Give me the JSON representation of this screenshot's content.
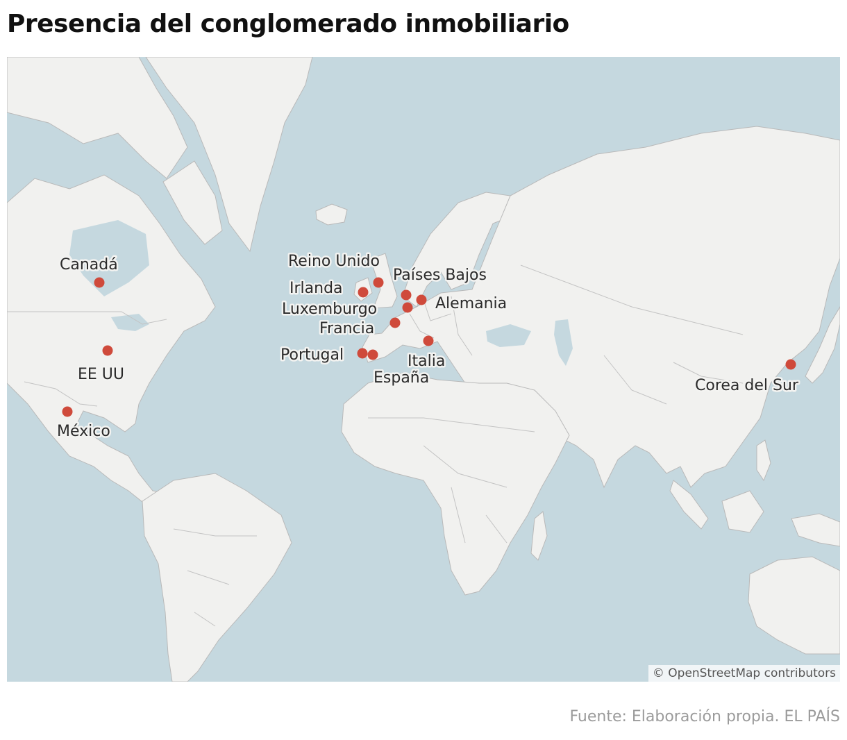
{
  "title": "Presencia del conglomerado inmobiliario",
  "map": {
    "attribution": "© OpenStreetMap contributors",
    "colors": {
      "water": "#c5d8df",
      "land": "#f1f1ef",
      "marker": "#cf4a3b"
    },
    "locations": [
      {
        "key": "canada",
        "label": "Canadá"
      },
      {
        "key": "eeuu",
        "label": "EE UU"
      },
      {
        "key": "mexico",
        "label": "México"
      },
      {
        "key": "reino_unido",
        "label": "Reino Unido"
      },
      {
        "key": "irlanda",
        "label": "Irlanda"
      },
      {
        "key": "paises_bajos",
        "label": "Países Bajos"
      },
      {
        "key": "alemania",
        "label": "Alemania"
      },
      {
        "key": "luxemburgo",
        "label": "Luxemburgo"
      },
      {
        "key": "francia",
        "label": "Francia"
      },
      {
        "key": "portugal",
        "label": "Portugal"
      },
      {
        "key": "espana",
        "label": "España"
      },
      {
        "key": "italia",
        "label": "Italia"
      },
      {
        "key": "corea_del_sur",
        "label": "Corea del Sur"
      }
    ]
  },
  "source": "Fuente: Elaboración propia. EL PAÍS"
}
